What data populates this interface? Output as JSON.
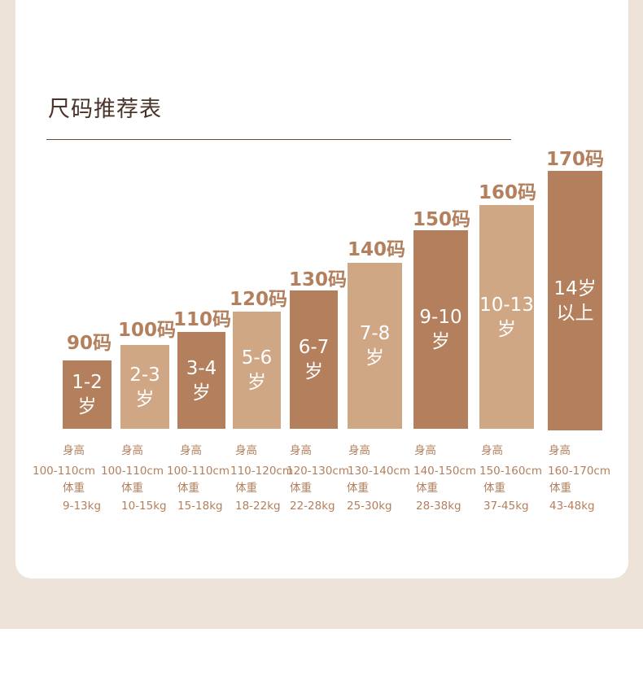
{
  "title": "尺码推荐表",
  "colors": {
    "bar_dark": "#b37f5c",
    "bar_light": "#cfa784",
    "text_accent": "#b37f5c",
    "background": "#eee3d8"
  },
  "labels": {
    "height": "身高",
    "weight": "体重"
  },
  "sizes": [
    {
      "size": "90码",
      "age": "1-2\n岁",
      "height": "100-110cm",
      "weight": "9-13kg",
      "tone": "dark"
    },
    {
      "size": "100码",
      "age": "2-3\n岁",
      "height": "100-110cm",
      "weight": "10-15kg",
      "tone": "light"
    },
    {
      "size": "110码",
      "age": "3-4\n岁",
      "height": "100-110cm",
      "weight": "15-18kg",
      "tone": "dark"
    },
    {
      "size": "120码",
      "age": "5-6\n岁",
      "height": "110-120cm",
      "weight": "18-22kg",
      "tone": "light"
    },
    {
      "size": "130码",
      "age": "6-7\n岁",
      "height": "120-130cm",
      "weight": "22-28kg",
      "tone": "dark"
    },
    {
      "size": "140码",
      "age": "7-8\n岁",
      "height": "130-140cm",
      "weight": "25-30kg",
      "tone": "light"
    },
    {
      "size": "150码",
      "age": "9-10\n岁",
      "height": "140-150cm",
      "weight": "28-38kg",
      "tone": "dark"
    },
    {
      "size": "160码",
      "age": "10-13\n岁",
      "height": "150-160cm",
      "weight": "37-45kg",
      "tone": "light"
    },
    {
      "size": "170码",
      "age": "14岁\n以上",
      "height": "160-170cm",
      "weight": "43-48kg",
      "tone": "dark"
    }
  ]
}
